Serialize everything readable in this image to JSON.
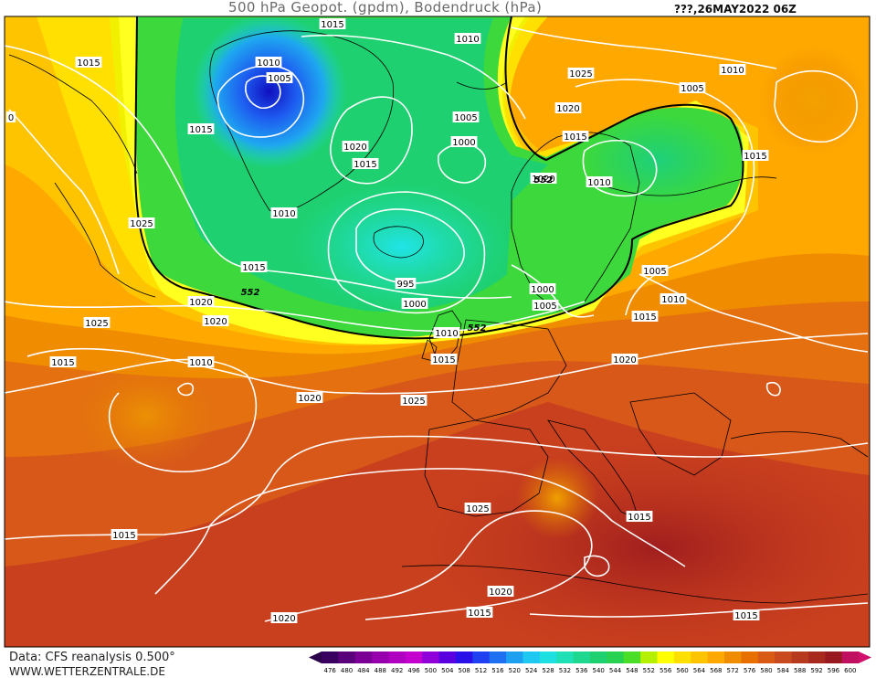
{
  "header": {
    "title": "500 hPa Geopot. (gpdm), Bodendruck (hPa)",
    "datestamp": "???,26MAY2022 06Z"
  },
  "footer": {
    "credit": "Data: CFS reanalysis 0.500°",
    "site": "WWW.WETTERZENTRALE.DE"
  },
  "legend": {
    "ticks": [
      "476",
      "480",
      "484",
      "488",
      "492",
      "496",
      "500",
      "504",
      "508",
      "512",
      "516",
      "520",
      "524",
      "528",
      "532",
      "536",
      "540",
      "544",
      "548",
      "552",
      "556",
      "560",
      "564",
      "568",
      "572",
      "576",
      "580",
      "584",
      "588",
      "592",
      "596",
      "600"
    ],
    "colors": [
      "#3a0060",
      "#5a007a",
      "#7a0095",
      "#9600ad",
      "#b000c0",
      "#c400cf",
      "#9000d8",
      "#5a00e0",
      "#2a10e8",
      "#1e40f0",
      "#1e70f0",
      "#1ea0f0",
      "#1ec8f0",
      "#1ee0e0",
      "#1ee0b4",
      "#1ed890",
      "#1ed070",
      "#28d250",
      "#4ade28",
      "#b4f000",
      "#ffff00",
      "#ffe000",
      "#ffc400",
      "#ffa800",
      "#f08c00",
      "#e87000",
      "#d85a14",
      "#c84a1e",
      "#b83a1e",
      "#a82a1e",
      "#981a1e",
      "#c01060"
    ]
  },
  "isobar_labels": [
    {
      "text": "1015"
    },
    {
      "text": "1010"
    },
    {
      "text": "1015"
    },
    {
      "text": "1010"
    },
    {
      "text": "1005"
    },
    {
      "text": "1015"
    },
    {
      "text": "1025"
    },
    {
      "text": "1020"
    },
    {
      "text": "1010"
    },
    {
      "text": "1005"
    },
    {
      "text": "1020"
    },
    {
      "text": "1015"
    },
    {
      "text": "1015"
    },
    {
      "text": "1000"
    },
    {
      "text": "1025"
    },
    {
      "text": "1015"
    },
    {
      "text": "1020"
    },
    {
      "text": "1020"
    },
    {
      "text": "1025"
    },
    {
      "text": "1005"
    },
    {
      "text": "1010"
    },
    {
      "text": "1015"
    },
    {
      "text": "1015"
    },
    {
      "text": "1010"
    },
    {
      "text": "995"
    },
    {
      "text": "1000"
    },
    {
      "text": "1000"
    },
    {
      "text": "1005"
    },
    {
      "text": "1010"
    },
    {
      "text": "1005"
    },
    {
      "text": "1010"
    },
    {
      "text": "1015"
    },
    {
      "text": "1020"
    },
    {
      "text": "1020"
    },
    {
      "text": "1015"
    },
    {
      "text": "1010"
    },
    {
      "text": "1020"
    },
    {
      "text": "1025"
    },
    {
      "text": "1025"
    },
    {
      "text": "1015"
    },
    {
      "text": "1015"
    },
    {
      "text": "1020"
    },
    {
      "text": "1015"
    },
    {
      "text": "1020"
    },
    {
      "text": "1015"
    },
    {
      "text": "0"
    }
  ],
  "height_labels": [
    {
      "text": "552"
    },
    {
      "text": "552"
    },
    {
      "text": "552"
    }
  ]
}
